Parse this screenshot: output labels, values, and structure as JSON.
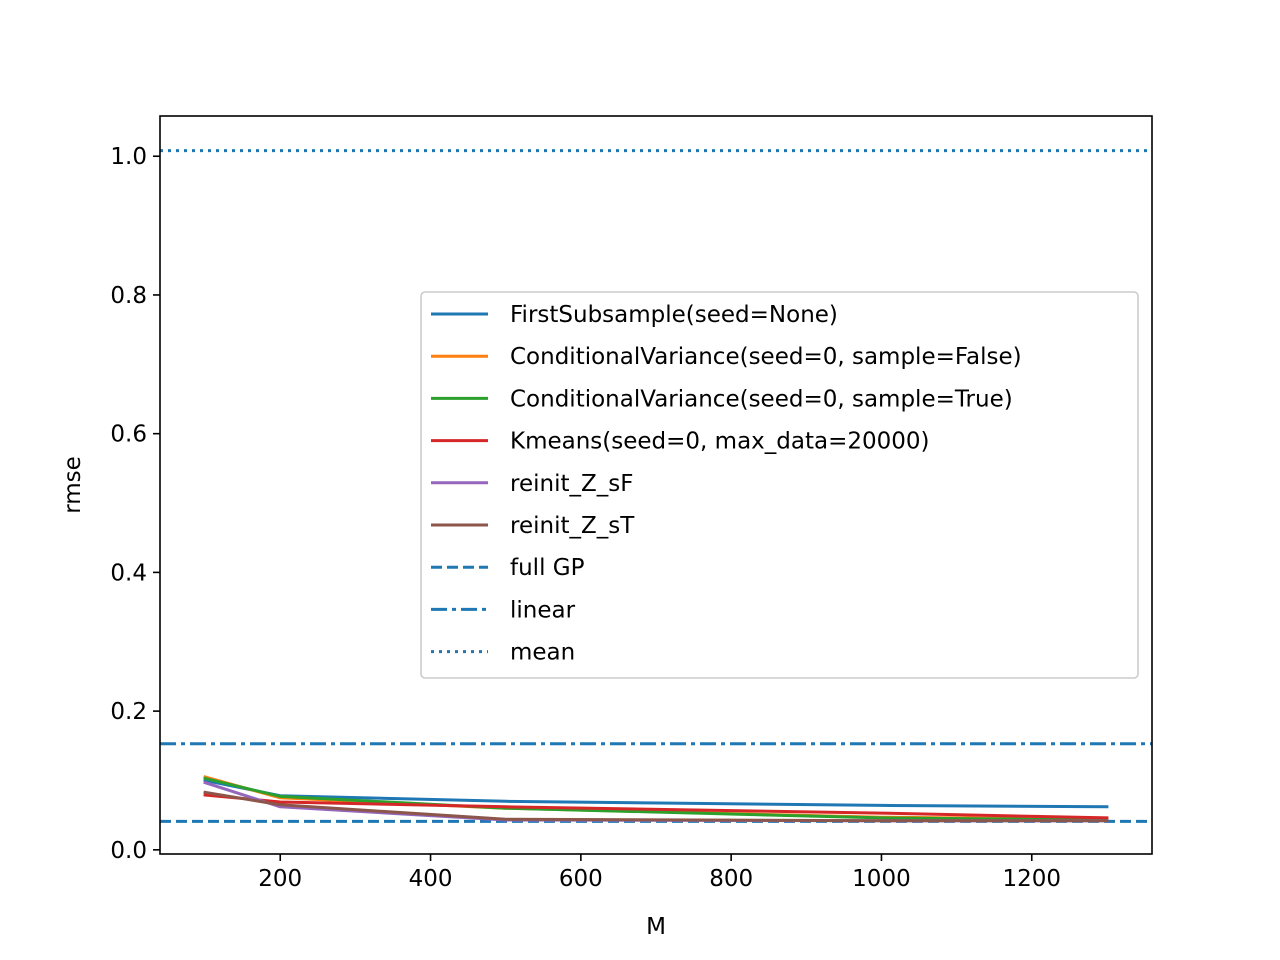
{
  "chart_data": {
    "type": "line",
    "title": "",
    "xlabel": "M",
    "ylabel": "rmse",
    "xlim": [
      40,
      1360
    ],
    "ylim": [
      -0.006,
      1.058
    ],
    "xticks": [
      200,
      400,
      600,
      800,
      1000,
      1200
    ],
    "xtick_labels": [
      "200",
      "400",
      "600",
      "800",
      "1000",
      "1200"
    ],
    "yticks": [
      0.0,
      0.2,
      0.4,
      0.6,
      0.8,
      1.0
    ],
    "ytick_labels": [
      "0.0",
      "0.2",
      "0.4",
      "0.6",
      "0.8",
      "1.0"
    ],
    "grid": false,
    "legend_position": "center-right",
    "x": [
      100,
      200,
      500,
      1000,
      1300
    ],
    "series": [
      {
        "name": "FirstSubsample(seed=None)",
        "color": "#1f77b4",
        "style": "solid",
        "values": [
          0.1,
          0.078,
          0.07,
          0.064,
          0.062
        ]
      },
      {
        "name": "ConditionalVariance(seed=0, sample=False)",
        "color": "#ff7f0e",
        "style": "solid",
        "values": [
          0.105,
          0.075,
          0.06,
          0.047,
          0.044
        ]
      },
      {
        "name": "ConditionalVariance(seed=0, sample=True)",
        "color": "#2ca02c",
        "style": "solid",
        "values": [
          0.103,
          0.077,
          0.06,
          0.046,
          0.043
        ]
      },
      {
        "name": "Kmeans(seed=0, max_data=20000)",
        "color": "#d62728",
        "style": "solid",
        "values": [
          0.079,
          0.069,
          0.062,
          0.053,
          0.046
        ]
      },
      {
        "name": "reinit_Z_sF",
        "color": "#9467bd",
        "style": "solid",
        "values": [
          0.097,
          0.062,
          0.043,
          0.042,
          0.042
        ]
      },
      {
        "name": "reinit_Z_sT",
        "color": "#8c564b",
        "style": "solid",
        "values": [
          0.083,
          0.065,
          0.044,
          0.042,
          0.042
        ]
      }
    ],
    "reference_lines": [
      {
        "name": "full GP",
        "color": "#1f77b4",
        "style": "dashed",
        "value": 0.041
      },
      {
        "name": "linear",
        "color": "#1f77b4",
        "style": "dashdot",
        "value": 0.153
      },
      {
        "name": "mean",
        "color": "#1f77b4",
        "style": "dotted",
        "value": 1.008
      }
    ]
  }
}
